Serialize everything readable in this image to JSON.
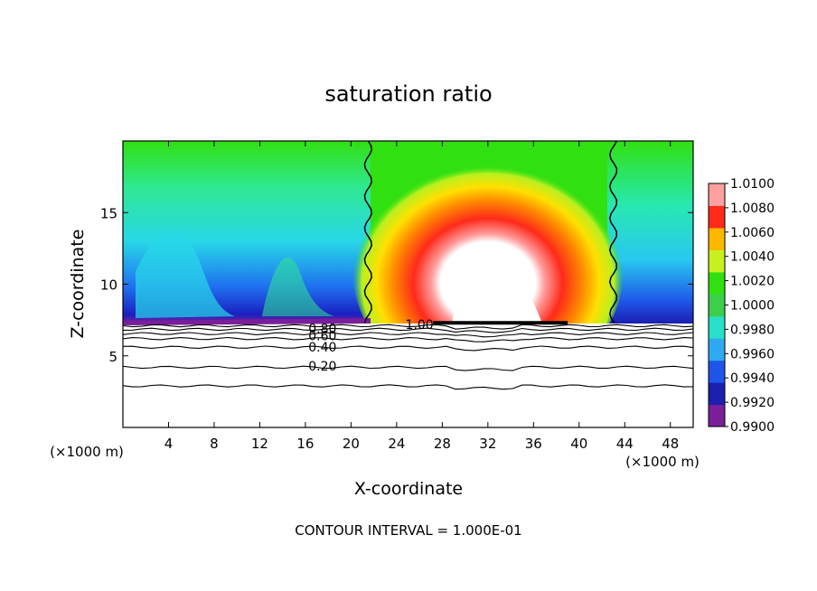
{
  "chart_data": {
    "type": "heatmap",
    "title": "saturation ratio",
    "xlabel": "X-coordinate",
    "ylabel": "Z-coordinate",
    "x_unit": "(×1000 m)",
    "z_unit": "(×1000 m)",
    "xlim": [
      0,
      50
    ],
    "ylim": [
      0,
      20
    ],
    "x_ticks": [
      4,
      8,
      12,
      16,
      20,
      24,
      28,
      32,
      36,
      40,
      44,
      48
    ],
    "y_ticks": [
      5,
      10,
      15
    ],
    "footer": "CONTOUR INTERVAL = 1.000E-01",
    "colorbar": {
      "levels": [
        "1.0100",
        "1.0080",
        "1.0060",
        "1.0040",
        "1.0020",
        "1.0000",
        "0.9980",
        "0.9960",
        "0.9940",
        "0.9920",
        "0.9900"
      ],
      "colors": [
        "#7a1f9a",
        "#1c1fb0",
        "#1f55e8",
        "#2fa9f2",
        "#28e0c8",
        "#3ccf4a",
        "#30e010",
        "#c8f020",
        "#ffb800",
        "#ff2a1a",
        "#ffa0a0"
      ]
    },
    "contour_labels": [
      {
        "text": "1.00",
        "x": 26.0,
        "z": 7.2
      },
      {
        "text": "0.80",
        "x": 17.5,
        "z": 6.9
      },
      {
        "text": "0.60",
        "x": 17.5,
        "z": 6.4
      },
      {
        "text": "0.40",
        "x": 17.5,
        "z": 5.6
      },
      {
        "text": "0.20",
        "x": 17.5,
        "z": 4.3
      }
    ],
    "contour_lines_z": [
      7.1,
      6.85,
      6.55,
      6.2,
      5.6,
      4.2,
      2.9
    ],
    "plume_center_x": 31.5,
    "plume_top_z": 15.5,
    "saturation_boundary_x": [
      21.5,
      43.0
    ],
    "cloud_base_z": 7.3
  }
}
